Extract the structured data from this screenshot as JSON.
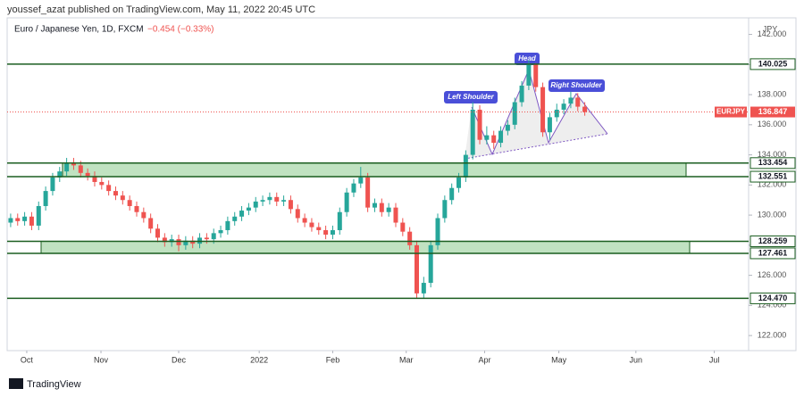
{
  "chart_data": {
    "type": "candlestick",
    "publisher": "youssef_azat published on TradingView.com, May 11, 2022 20:45 UTC",
    "title": "Euro / Japanese Yen, 1D, FXCM",
    "change": "−0.454 (−0.33%)",
    "currency": "JPY",
    "symbol": "EURJPY",
    "last_price": 136.847,
    "brand": "TradingView",
    "up_color": "#26a69a",
    "down_color": "#ef5350",
    "ylim": [
      121.0,
      143.1
    ],
    "yticks": [
      {
        "value": 122,
        "label": "122.000"
      },
      {
        "value": 124,
        "label": "124.000"
      },
      {
        "value": 126,
        "label": "126.000"
      },
      {
        "value": 128,
        "label": "128.000"
      },
      {
        "value": 130,
        "label": "130.000"
      },
      {
        "value": 132,
        "label": "132.000"
      },
      {
        "value": 134,
        "label": "134.000"
      },
      {
        "value": 136,
        "label": "136.000"
      },
      {
        "value": 138,
        "label": "138.000"
      },
      {
        "value": 140,
        "label": "140.000"
      },
      {
        "value": 142,
        "label": "142.000"
      }
    ],
    "xlim": [
      -0.5,
      105.4
    ],
    "xticks": [
      {
        "value": 2.3,
        "label": "Oct"
      },
      {
        "value": 12.9,
        "label": "Nov"
      },
      {
        "value": 24,
        "label": "Dec"
      },
      {
        "value": 35.5,
        "label": "2022"
      },
      {
        "value": 46,
        "label": "Feb"
      },
      {
        "value": 56.5,
        "label": "Mar"
      },
      {
        "value": 67.7,
        "label": "Apr"
      },
      {
        "value": 78.3,
        "label": "May"
      },
      {
        "value": 89.3,
        "label": "Jun"
      },
      {
        "value": 100.5,
        "label": "Jul"
      }
    ],
    "levels": [
      140.025,
      133.454,
      132.551,
      128.259,
      127.461,
      {
        "value": 124.47,
        "label": "124.470"
      }
    ],
    "annotations": [
      "Left Shoulder",
      "Head",
      "Right Shoulder"
    ],
    "ohlc": [
      [
        129.5,
        130.1,
        129.2,
        129.8
      ],
      [
        129.8,
        130.1,
        129.3,
        129.6
      ],
      [
        129.6,
        130.2,
        129.3,
        129.9
      ],
      [
        129.9,
        130.2,
        129.0,
        129.3
      ],
      [
        129.3,
        130.9,
        129.0,
        130.6
      ],
      [
        130.6,
        131.9,
        130.3,
        131.6
      ],
      [
        131.6,
        132.8,
        131.3,
        132.5
      ],
      [
        132.5,
        133.2,
        132.2,
        132.9
      ],
      [
        132.9,
        133.8,
        132.6,
        133.5
      ],
      [
        133.5,
        133.8,
        133.0,
        133.3
      ],
      [
        133.3,
        133.6,
        132.5,
        132.8
      ],
      [
        132.8,
        133.1,
        132.3,
        132.6
      ],
      [
        132.6,
        132.9,
        131.9,
        132.2
      ],
      [
        132.2,
        132.5,
        131.7,
        132.0
      ],
      [
        132.0,
        132.3,
        131.3,
        131.6
      ],
      [
        131.6,
        131.9,
        131.0,
        131.3
      ],
      [
        131.3,
        131.6,
        130.7,
        131.0
      ],
      [
        131.0,
        131.3,
        130.3,
        130.6
      ],
      [
        130.6,
        130.9,
        129.9,
        130.2
      ],
      [
        130.2,
        130.5,
        129.5,
        129.8
      ],
      [
        129.8,
        130.1,
        128.8,
        129.1
      ],
      [
        129.1,
        129.4,
        128.2,
        128.5
      ],
      [
        128.5,
        128.8,
        127.9,
        128.2
      ],
      [
        128.2,
        128.7,
        127.9,
        128.4
      ],
      [
        128.4,
        128.7,
        127.6,
        128.0
      ],
      [
        128.0,
        128.6,
        127.7,
        128.3
      ],
      [
        128.3,
        128.6,
        127.8,
        128.1
      ],
      [
        128.1,
        128.8,
        127.8,
        128.5
      ],
      [
        128.5,
        128.8,
        128.1,
        128.4
      ],
      [
        128.4,
        129.1,
        128.1,
        128.8
      ],
      [
        128.8,
        129.3,
        128.5,
        129.0
      ],
      [
        129.0,
        129.9,
        128.7,
        129.6
      ],
      [
        129.6,
        130.2,
        129.3,
        129.9
      ],
      [
        129.9,
        130.6,
        129.6,
        130.3
      ],
      [
        130.3,
        130.8,
        130.0,
        130.5
      ],
      [
        130.5,
        131.2,
        130.2,
        130.9
      ],
      [
        130.9,
        131.3,
        130.6,
        131.0
      ],
      [
        131.0,
        131.5,
        130.7,
        131.2
      ],
      [
        131.2,
        131.5,
        130.6,
        130.9
      ],
      [
        130.9,
        131.3,
        130.6,
        131.0
      ],
      [
        131.0,
        131.3,
        130.1,
        130.4
      ],
      [
        130.4,
        130.7,
        129.5,
        129.8
      ],
      [
        129.8,
        130.1,
        129.2,
        129.5
      ],
      [
        129.5,
        129.8,
        128.9,
        129.2
      ],
      [
        129.2,
        129.5,
        128.7,
        129.0
      ],
      [
        129.0,
        129.3,
        128.4,
        128.7
      ],
      [
        128.7,
        129.3,
        128.4,
        129.0
      ],
      [
        129.0,
        130.5,
        128.7,
        130.2
      ],
      [
        130.2,
        131.8,
        129.9,
        131.5
      ],
      [
        131.5,
        132.4,
        131.2,
        132.1
      ],
      [
        132.1,
        133.2,
        131.8,
        132.5
      ],
      [
        132.5,
        132.8,
        130.2,
        130.5
      ],
      [
        130.5,
        131.1,
        130.2,
        130.8
      ],
      [
        130.8,
        131.1,
        129.9,
        130.2
      ],
      [
        130.2,
        130.8,
        129.9,
        130.5
      ],
      [
        130.5,
        130.8,
        129.2,
        129.5
      ],
      [
        129.5,
        129.8,
        128.6,
        128.9
      ],
      [
        128.9,
        129.2,
        127.7,
        128.0
      ],
      [
        128.0,
        128.3,
        124.5,
        124.8
      ],
      [
        124.8,
        125.9,
        124.5,
        125.5
      ],
      [
        125.5,
        128.3,
        125.2,
        128.0
      ],
      [
        128.0,
        130.1,
        127.7,
        129.8
      ],
      [
        129.8,
        131.3,
        129.5,
        131.0
      ],
      [
        131.0,
        132.1,
        130.7,
        131.8
      ],
      [
        131.8,
        132.8,
        131.5,
        132.5
      ],
      [
        132.5,
        134.3,
        132.2,
        134.0
      ],
      [
        134.0,
        137.5,
        133.7,
        137.0
      ],
      [
        137.0,
        137.3,
        134.7,
        135.0
      ],
      [
        135.0,
        135.9,
        134.7,
        135.3
      ],
      [
        135.3,
        135.6,
        134.4,
        134.8
      ],
      [
        134.8,
        135.9,
        134.5,
        135.6
      ],
      [
        135.6,
        136.3,
        135.3,
        136.0
      ],
      [
        136.0,
        137.8,
        135.7,
        137.5
      ],
      [
        137.5,
        138.9,
        137.2,
        138.6
      ],
      [
        138.6,
        140.3,
        138.3,
        140.0
      ],
      [
        140.0,
        140.1,
        138.2,
        138.5
      ],
      [
        138.5,
        138.8,
        135.2,
        135.5
      ],
      [
        135.5,
        136.8,
        135.0,
        136.5
      ],
      [
        136.5,
        137.4,
        136.2,
        137.0
      ],
      [
        137.0,
        137.7,
        136.7,
        137.4
      ],
      [
        137.4,
        138.2,
        137.1,
        137.8
      ],
      [
        137.8,
        138.1,
        136.9,
        137.2
      ],
      [
        137.2,
        137.5,
        136.6,
        136.847
      ]
    ]
  }
}
